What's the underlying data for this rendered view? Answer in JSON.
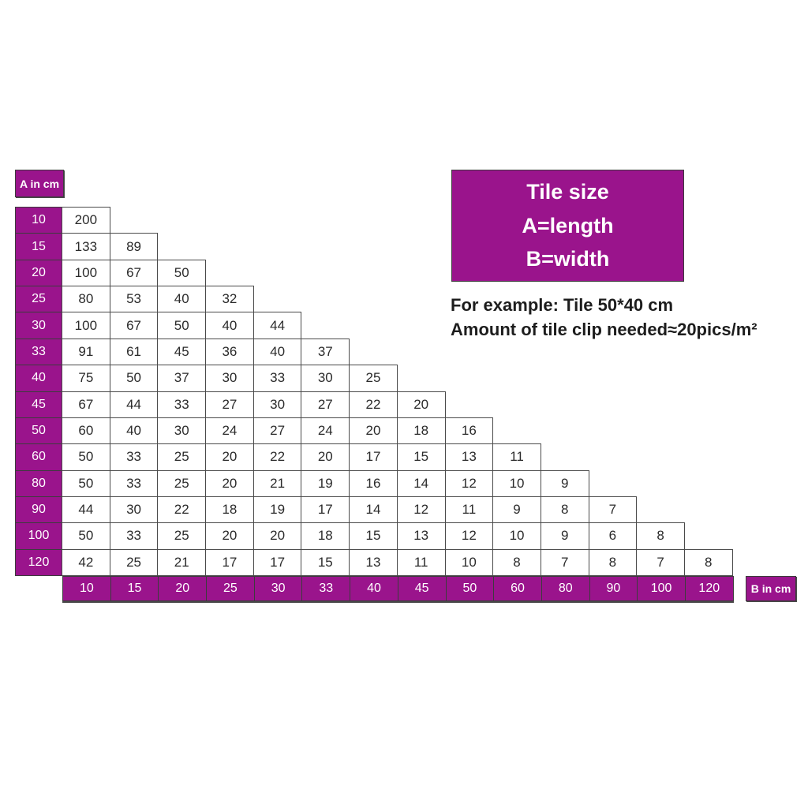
{
  "colors": {
    "purple": "#9A148C",
    "border": "#3C3C3C",
    "cell_text": "#2B2B2B",
    "header_text": "#FFFFFF",
    "background": "#FFFFFF"
  },
  "legend": {
    "title": "Tile size",
    "line_a": "A=length",
    "line_b": "B=width"
  },
  "example": {
    "line1": "For example: Tile 50*40 cm",
    "line2": "Amount of tile clip needed≈20pics/m²"
  },
  "chart_data": {
    "type": "table",
    "row_header_label": "A in cm",
    "col_header_label": "B in cm",
    "b_values": [
      "10",
      "15",
      "20",
      "25",
      "30",
      "33",
      "40",
      "45",
      "50",
      "60",
      "80",
      "90",
      "100",
      "120"
    ],
    "rows": [
      {
        "a": "10",
        "values": [
          "200"
        ]
      },
      {
        "a": "15",
        "values": [
          "133",
          "89"
        ]
      },
      {
        "a": "20",
        "values": [
          "100",
          "67",
          "50"
        ]
      },
      {
        "a": "25",
        "values": [
          "80",
          "53",
          "40",
          "32"
        ]
      },
      {
        "a": "30",
        "values": [
          "100",
          "67",
          "50",
          "40",
          "44"
        ]
      },
      {
        "a": "33",
        "values": [
          "91",
          "61",
          "45",
          "36",
          "40",
          "37"
        ]
      },
      {
        "a": "40",
        "values": [
          "75",
          "50",
          "37",
          "30",
          "33",
          "30",
          "25"
        ]
      },
      {
        "a": "45",
        "values": [
          "67",
          "44",
          "33",
          "27",
          "30",
          "27",
          "22",
          "20"
        ]
      },
      {
        "a": "50",
        "values": [
          "60",
          "40",
          "30",
          "24",
          "27",
          "24",
          "20",
          "18",
          "16"
        ]
      },
      {
        "a": "60",
        "values": [
          "50",
          "33",
          "25",
          "20",
          "22",
          "20",
          "17",
          "15",
          "13",
          "11"
        ]
      },
      {
        "a": "80",
        "values": [
          "50",
          "33",
          "25",
          "20",
          "21",
          "19",
          "16",
          "14",
          "12",
          "10",
          "9"
        ]
      },
      {
        "a": "90",
        "values": [
          "44",
          "30",
          "22",
          "18",
          "19",
          "17",
          "14",
          "12",
          "11",
          "9",
          "8",
          "7"
        ]
      },
      {
        "a": "100",
        "values": [
          "50",
          "33",
          "25",
          "20",
          "20",
          "18",
          "15",
          "13",
          "12",
          "10",
          "9",
          "6",
          "8"
        ]
      },
      {
        "a": "120",
        "values": [
          "42",
          "25",
          "21",
          "17",
          "17",
          "15",
          "13",
          "11",
          "10",
          "8",
          "7",
          "8",
          "7",
          "8"
        ]
      }
    ]
  }
}
